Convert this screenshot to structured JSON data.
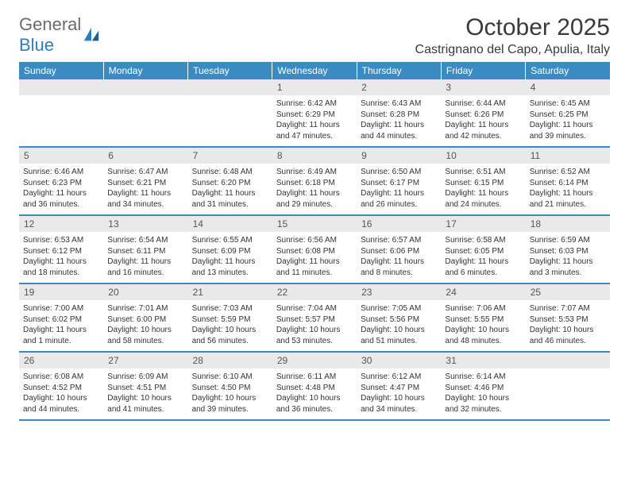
{
  "logo": {
    "word1": "General",
    "word2": "Blue"
  },
  "title": "October 2025",
  "location": "Castrignano del Capo, Apulia, Italy",
  "colors": {
    "header_bg": "#3b8bc3",
    "header_text": "#ffffff",
    "daynum_bg": "#e9e9e9",
    "rule": "#3b8bc3",
    "logo_gray": "#6b6b6b",
    "logo_blue": "#2a7fbf",
    "text": "#333333",
    "background": "#ffffff"
  },
  "weekdays": [
    "Sunday",
    "Monday",
    "Tuesday",
    "Wednesday",
    "Thursday",
    "Friday",
    "Saturday"
  ],
  "weeks": [
    [
      null,
      null,
      null,
      {
        "n": "1",
        "sunrise": "6:42 AM",
        "sunset": "6:29 PM",
        "daylight": "11 hours and 47 minutes."
      },
      {
        "n": "2",
        "sunrise": "6:43 AM",
        "sunset": "6:28 PM",
        "daylight": "11 hours and 44 minutes."
      },
      {
        "n": "3",
        "sunrise": "6:44 AM",
        "sunset": "6:26 PM",
        "daylight": "11 hours and 42 minutes."
      },
      {
        "n": "4",
        "sunrise": "6:45 AM",
        "sunset": "6:25 PM",
        "daylight": "11 hours and 39 minutes."
      }
    ],
    [
      {
        "n": "5",
        "sunrise": "6:46 AM",
        "sunset": "6:23 PM",
        "daylight": "11 hours and 36 minutes."
      },
      {
        "n": "6",
        "sunrise": "6:47 AM",
        "sunset": "6:21 PM",
        "daylight": "11 hours and 34 minutes."
      },
      {
        "n": "7",
        "sunrise": "6:48 AM",
        "sunset": "6:20 PM",
        "daylight": "11 hours and 31 minutes."
      },
      {
        "n": "8",
        "sunrise": "6:49 AM",
        "sunset": "6:18 PM",
        "daylight": "11 hours and 29 minutes."
      },
      {
        "n": "9",
        "sunrise": "6:50 AM",
        "sunset": "6:17 PM",
        "daylight": "11 hours and 26 minutes."
      },
      {
        "n": "10",
        "sunrise": "6:51 AM",
        "sunset": "6:15 PM",
        "daylight": "11 hours and 24 minutes."
      },
      {
        "n": "11",
        "sunrise": "6:52 AM",
        "sunset": "6:14 PM",
        "daylight": "11 hours and 21 minutes."
      }
    ],
    [
      {
        "n": "12",
        "sunrise": "6:53 AM",
        "sunset": "6:12 PM",
        "daylight": "11 hours and 18 minutes."
      },
      {
        "n": "13",
        "sunrise": "6:54 AM",
        "sunset": "6:11 PM",
        "daylight": "11 hours and 16 minutes."
      },
      {
        "n": "14",
        "sunrise": "6:55 AM",
        "sunset": "6:09 PM",
        "daylight": "11 hours and 13 minutes."
      },
      {
        "n": "15",
        "sunrise": "6:56 AM",
        "sunset": "6:08 PM",
        "daylight": "11 hours and 11 minutes."
      },
      {
        "n": "16",
        "sunrise": "6:57 AM",
        "sunset": "6:06 PM",
        "daylight": "11 hours and 8 minutes."
      },
      {
        "n": "17",
        "sunrise": "6:58 AM",
        "sunset": "6:05 PM",
        "daylight": "11 hours and 6 minutes."
      },
      {
        "n": "18",
        "sunrise": "6:59 AM",
        "sunset": "6:03 PM",
        "daylight": "11 hours and 3 minutes."
      }
    ],
    [
      {
        "n": "19",
        "sunrise": "7:00 AM",
        "sunset": "6:02 PM",
        "daylight": "11 hours and 1 minute."
      },
      {
        "n": "20",
        "sunrise": "7:01 AM",
        "sunset": "6:00 PM",
        "daylight": "10 hours and 58 minutes."
      },
      {
        "n": "21",
        "sunrise": "7:03 AM",
        "sunset": "5:59 PM",
        "daylight": "10 hours and 56 minutes."
      },
      {
        "n": "22",
        "sunrise": "7:04 AM",
        "sunset": "5:57 PM",
        "daylight": "10 hours and 53 minutes."
      },
      {
        "n": "23",
        "sunrise": "7:05 AM",
        "sunset": "5:56 PM",
        "daylight": "10 hours and 51 minutes."
      },
      {
        "n": "24",
        "sunrise": "7:06 AM",
        "sunset": "5:55 PM",
        "daylight": "10 hours and 48 minutes."
      },
      {
        "n": "25",
        "sunrise": "7:07 AM",
        "sunset": "5:53 PM",
        "daylight": "10 hours and 46 minutes."
      }
    ],
    [
      {
        "n": "26",
        "sunrise": "6:08 AM",
        "sunset": "4:52 PM",
        "daylight": "10 hours and 44 minutes."
      },
      {
        "n": "27",
        "sunrise": "6:09 AM",
        "sunset": "4:51 PM",
        "daylight": "10 hours and 41 minutes."
      },
      {
        "n": "28",
        "sunrise": "6:10 AM",
        "sunset": "4:50 PM",
        "daylight": "10 hours and 39 minutes."
      },
      {
        "n": "29",
        "sunrise": "6:11 AM",
        "sunset": "4:48 PM",
        "daylight": "10 hours and 36 minutes."
      },
      {
        "n": "30",
        "sunrise": "6:12 AM",
        "sunset": "4:47 PM",
        "daylight": "10 hours and 34 minutes."
      },
      {
        "n": "31",
        "sunrise": "6:14 AM",
        "sunset": "4:46 PM",
        "daylight": "10 hours and 32 minutes."
      },
      null
    ]
  ],
  "labels": {
    "sunrise_prefix": "Sunrise: ",
    "sunset_prefix": "Sunset: ",
    "daylight_prefix": "Daylight: "
  },
  "typography": {
    "title_fontsize": 30,
    "location_fontsize": 16,
    "weekday_fontsize": 12,
    "daynum_fontsize": 12,
    "body_fontsize": 10
  }
}
